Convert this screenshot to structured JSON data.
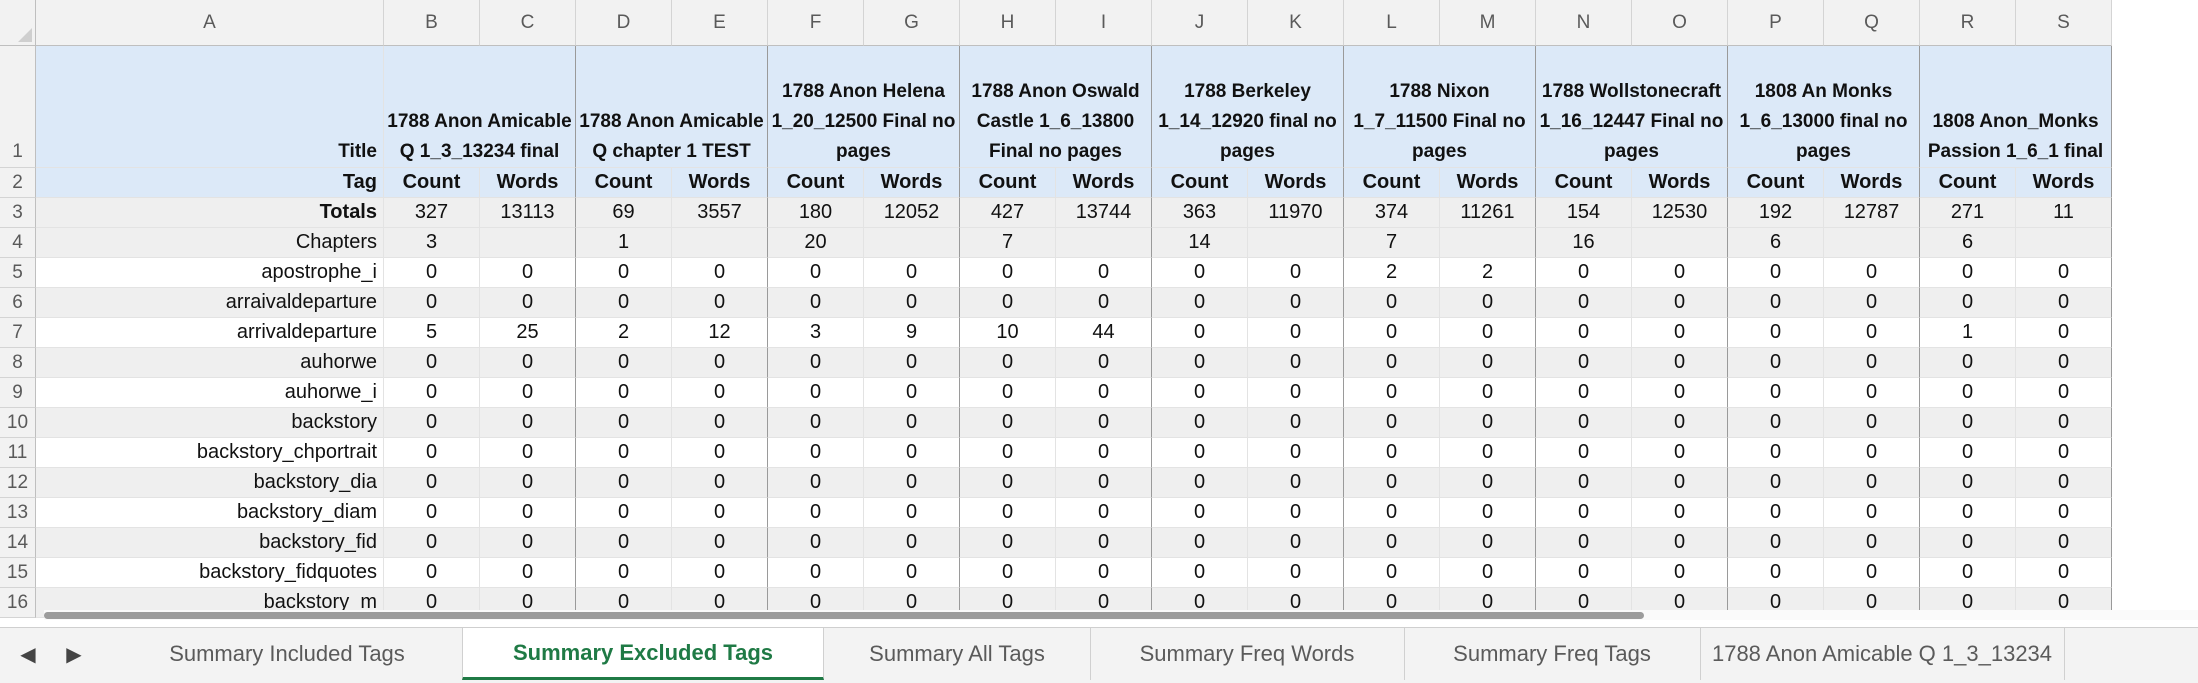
{
  "columns": [
    "A",
    "B",
    "C",
    "D",
    "E",
    "F",
    "G",
    "H",
    "I",
    "J",
    "K",
    "L",
    "M",
    "N",
    "O",
    "P",
    "Q",
    "R",
    "S"
  ],
  "rows": [
    {
      "num": "1",
      "label": "Title",
      "values": []
    },
    {
      "num": "2",
      "label": "Tag",
      "values": [
        "Count",
        "Words",
        "Count",
        "Words",
        "Count",
        "Words",
        "Count",
        "Words",
        "Count",
        "Words",
        "Count",
        "Words",
        "Count",
        "Words",
        "Count",
        "Words",
        "Count",
        "Words"
      ]
    },
    {
      "num": "3",
      "label": "Totals",
      "values": [
        "327",
        "13113",
        "69",
        "3557",
        "180",
        "12052",
        "427",
        "13744",
        "363",
        "11970",
        "374",
        "11261",
        "154",
        "12530",
        "192",
        "12787",
        "271",
        "11"
      ]
    },
    {
      "num": "4",
      "label": "Chapters",
      "values": [
        "3",
        "",
        "1",
        "",
        "20",
        "",
        "7",
        "",
        "14",
        "",
        "7",
        "",
        "16",
        "",
        "6",
        "",
        "6",
        ""
      ]
    },
    {
      "num": "5",
      "label": "apostrophe_i",
      "values": [
        "0",
        "0",
        "0",
        "0",
        "0",
        "0",
        "0",
        "0",
        "0",
        "0",
        "2",
        "2",
        "0",
        "0",
        "0",
        "0",
        "0",
        "0"
      ]
    },
    {
      "num": "6",
      "label": "arraivaldeparture",
      "values": [
        "0",
        "0",
        "0",
        "0",
        "0",
        "0",
        "0",
        "0",
        "0",
        "0",
        "0",
        "0",
        "0",
        "0",
        "0",
        "0",
        "0",
        "0"
      ]
    },
    {
      "num": "7",
      "label": "arrivaldeparture",
      "values": [
        "5",
        "25",
        "2",
        "12",
        "3",
        "9",
        "10",
        "44",
        "0",
        "0",
        "0",
        "0",
        "0",
        "0",
        "0",
        "0",
        "1",
        "0"
      ]
    },
    {
      "num": "8",
      "label": "auhorwe",
      "values": [
        "0",
        "0",
        "0",
        "0",
        "0",
        "0",
        "0",
        "0",
        "0",
        "0",
        "0",
        "0",
        "0",
        "0",
        "0",
        "0",
        "0",
        "0"
      ]
    },
    {
      "num": "9",
      "label": "auhorwe_i",
      "values": [
        "0",
        "0",
        "0",
        "0",
        "0",
        "0",
        "0",
        "0",
        "0",
        "0",
        "0",
        "0",
        "0",
        "0",
        "0",
        "0",
        "0",
        "0"
      ]
    },
    {
      "num": "10",
      "label": "backstory",
      "values": [
        "0",
        "0",
        "0",
        "0",
        "0",
        "0",
        "0",
        "0",
        "0",
        "0",
        "0",
        "0",
        "0",
        "0",
        "0",
        "0",
        "0",
        "0"
      ]
    },
    {
      "num": "11",
      "label": "backstory_chportrait",
      "values": [
        "0",
        "0",
        "0",
        "0",
        "0",
        "0",
        "0",
        "0",
        "0",
        "0",
        "0",
        "0",
        "0",
        "0",
        "0",
        "0",
        "0",
        "0"
      ]
    },
    {
      "num": "12",
      "label": "backstory_dia",
      "values": [
        "0",
        "0",
        "0",
        "0",
        "0",
        "0",
        "0",
        "0",
        "0",
        "0",
        "0",
        "0",
        "0",
        "0",
        "0",
        "0",
        "0",
        "0"
      ]
    },
    {
      "num": "13",
      "label": "backstory_diam",
      "values": [
        "0",
        "0",
        "0",
        "0",
        "0",
        "0",
        "0",
        "0",
        "0",
        "0",
        "0",
        "0",
        "0",
        "0",
        "0",
        "0",
        "0",
        "0"
      ]
    },
    {
      "num": "14",
      "label": "backstory_fid",
      "values": [
        "0",
        "0",
        "0",
        "0",
        "0",
        "0",
        "0",
        "0",
        "0",
        "0",
        "0",
        "0",
        "0",
        "0",
        "0",
        "0",
        "0",
        "0"
      ]
    },
    {
      "num": "15",
      "label": "backstory_fidquotes",
      "values": [
        "0",
        "0",
        "0",
        "0",
        "0",
        "0",
        "0",
        "0",
        "0",
        "0",
        "0",
        "0",
        "0",
        "0",
        "0",
        "0",
        "0",
        "0"
      ]
    },
    {
      "num": "16",
      "label": "backstory_m",
      "values": [
        "0",
        "0",
        "0",
        "0",
        "0",
        "0",
        "0",
        "0",
        "0",
        "0",
        "0",
        "0",
        "0",
        "0",
        "0",
        "0",
        "0",
        "0"
      ]
    }
  ],
  "titles": [
    "1788 Anon Amicable Q 1_3_13234 final",
    "1788 Anon Amicable Q chapter 1 TEST",
    "1788 Anon Helena 1_20_12500 Final no pages",
    "1788 Anon Oswald Castle 1_6_13800 Final no pages",
    "1788 Berkeley 1_14_12920 final no pages",
    "1788 Nixon 1_7_11500 Final no pages",
    "1788 Wollstonecraft 1_16_12447 Final no pages",
    "1808 An Monks 1_6_13000 final no pages",
    "1808 Anon_Monks Passion 1_6_1 final"
  ],
  "tabs": [
    {
      "label": "Summary Included Tags",
      "active": false
    },
    {
      "label": "Summary Excluded Tags",
      "active": true
    },
    {
      "label": "Summary All Tags",
      "active": false
    },
    {
      "label": "Summary Freq Words",
      "active": false
    },
    {
      "label": "Summary Freq Tags",
      "active": false
    },
    {
      "label": "1788 Anon Amicable Q 1_3_13234",
      "active": false
    }
  ],
  "nav": {
    "prev_icon": "◀",
    "next_icon": "▶"
  },
  "colors": {
    "header_blue": "#dce9f8",
    "row_grey": "#efefef",
    "active_tab": "#1f7a45"
  }
}
